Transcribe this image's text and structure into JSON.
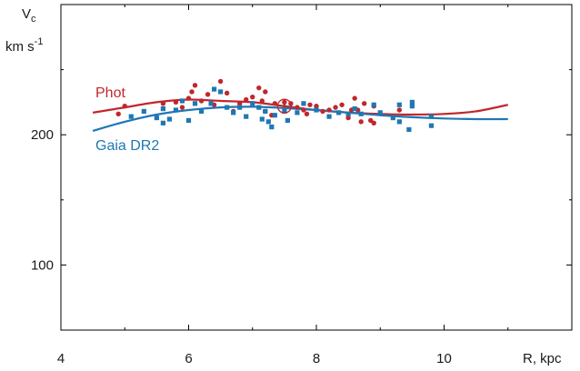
{
  "chart_data": {
    "type": "scatter",
    "title": "",
    "xlabel": "R, kpc",
    "ylabel": "V",
    "ylabel_sub": "c",
    "yunit_base": "km s",
    "yunit_exp": "-1",
    "xlim": [
      4,
      12
    ],
    "ylim": [
      50,
      300
    ],
    "xticks": [
      4,
      6,
      8,
      10
    ],
    "xtick_labels": [
      "4",
      "6",
      "8",
      "10"
    ],
    "yticks": [
      100,
      200
    ],
    "ytick_labels": [
      "100",
      "200"
    ],
    "grid": false,
    "sun_marker": {
      "x": 7.5,
      "y": 222
    },
    "series": [
      {
        "name": "Phot",
        "color": "#c0272d",
        "marker": "circle",
        "points": [
          [
            4.9,
            216
          ],
          [
            5.0,
            222
          ],
          [
            5.6,
            224
          ],
          [
            5.8,
            225
          ],
          [
            5.9,
            221
          ],
          [
            6.0,
            228
          ],
          [
            6.05,
            233
          ],
          [
            6.1,
            238
          ],
          [
            6.2,
            226
          ],
          [
            6.3,
            231
          ],
          [
            6.4,
            223
          ],
          [
            6.5,
            241
          ],
          [
            6.6,
            232
          ],
          [
            6.7,
            218
          ],
          [
            6.8,
            224
          ],
          [
            6.9,
            227
          ],
          [
            7.0,
            229
          ],
          [
            7.1,
            236
          ],
          [
            7.15,
            226
          ],
          [
            7.2,
            233
          ],
          [
            7.2,
            218
          ],
          [
            7.3,
            215
          ],
          [
            7.35,
            224
          ],
          [
            7.5,
            225
          ],
          [
            7.6,
            224
          ],
          [
            7.7,
            221
          ],
          [
            7.8,
            219
          ],
          [
            7.85,
            216
          ],
          [
            7.9,
            223
          ],
          [
            8.0,
            222
          ],
          [
            8.1,
            218
          ],
          [
            8.2,
            219
          ],
          [
            8.3,
            221
          ],
          [
            8.4,
            223
          ],
          [
            8.5,
            213
          ],
          [
            8.55,
            219
          ],
          [
            8.6,
            228
          ],
          [
            8.65,
            219
          ],
          [
            8.7,
            210
          ],
          [
            8.75,
            224
          ],
          [
            8.85,
            211
          ],
          [
            8.9,
            209
          ],
          [
            8.9,
            222
          ],
          [
            9.3,
            219
          ]
        ],
        "curve": [
          [
            4.5,
            217
          ],
          [
            5.0,
            221
          ],
          [
            5.5,
            225
          ],
          [
            6.0,
            227
          ],
          [
            6.5,
            226
          ],
          [
            7.0,
            225
          ],
          [
            7.5,
            222
          ],
          [
            8.0,
            219
          ],
          [
            8.5,
            217
          ],
          [
            9.0,
            216
          ],
          [
            9.5,
            215.5
          ],
          [
            10.0,
            216
          ],
          [
            10.5,
            218
          ],
          [
            11.0,
            223
          ]
        ]
      },
      {
        "name": "Gaia DR2",
        "color": "#1f77b4",
        "marker": "square",
        "points": [
          [
            5.1,
            214
          ],
          [
            5.3,
            218
          ],
          [
            5.5,
            213
          ],
          [
            5.6,
            209
          ],
          [
            5.6,
            220
          ],
          [
            5.7,
            212
          ],
          [
            5.8,
            219
          ],
          [
            5.9,
            226
          ],
          [
            6.0,
            211
          ],
          [
            6.1,
            224
          ],
          [
            6.2,
            218
          ],
          [
            6.35,
            224
          ],
          [
            6.4,
            235
          ],
          [
            6.5,
            233
          ],
          [
            6.6,
            221
          ],
          [
            6.7,
            217
          ],
          [
            6.8,
            221
          ],
          [
            6.9,
            214
          ],
          [
            7.0,
            224
          ],
          [
            7.1,
            221
          ],
          [
            7.15,
            212
          ],
          [
            7.2,
            218
          ],
          [
            7.25,
            210
          ],
          [
            7.3,
            206
          ],
          [
            7.35,
            215
          ],
          [
            7.5,
            218
          ],
          [
            7.55,
            211
          ],
          [
            7.7,
            217
          ],
          [
            7.8,
            224
          ],
          [
            8.0,
            219
          ],
          [
            8.2,
            214
          ],
          [
            8.35,
            217
          ],
          [
            8.5,
            216
          ],
          [
            8.6,
            220
          ],
          [
            8.7,
            216
          ],
          [
            8.9,
            223
          ],
          [
            9.0,
            217
          ],
          [
            9.2,
            213
          ],
          [
            9.3,
            223
          ],
          [
            9.3,
            210
          ],
          [
            9.45,
            204
          ],
          [
            9.5,
            222
          ],
          [
            9.5,
            225
          ],
          [
            9.8,
            207
          ],
          [
            9.8,
            214
          ]
        ],
        "curve": [
          [
            4.5,
            203
          ],
          [
            5.0,
            210
          ],
          [
            5.5,
            215.5
          ],
          [
            6.0,
            219
          ],
          [
            6.5,
            221
          ],
          [
            7.0,
            221.5
          ],
          [
            7.5,
            220.5
          ],
          [
            8.0,
            219
          ],
          [
            8.5,
            217
          ],
          [
            9.0,
            215
          ],
          [
            9.5,
            213.5
          ],
          [
            10.0,
            212.5
          ],
          [
            10.5,
            212
          ],
          [
            11.0,
            212
          ]
        ]
      }
    ]
  }
}
